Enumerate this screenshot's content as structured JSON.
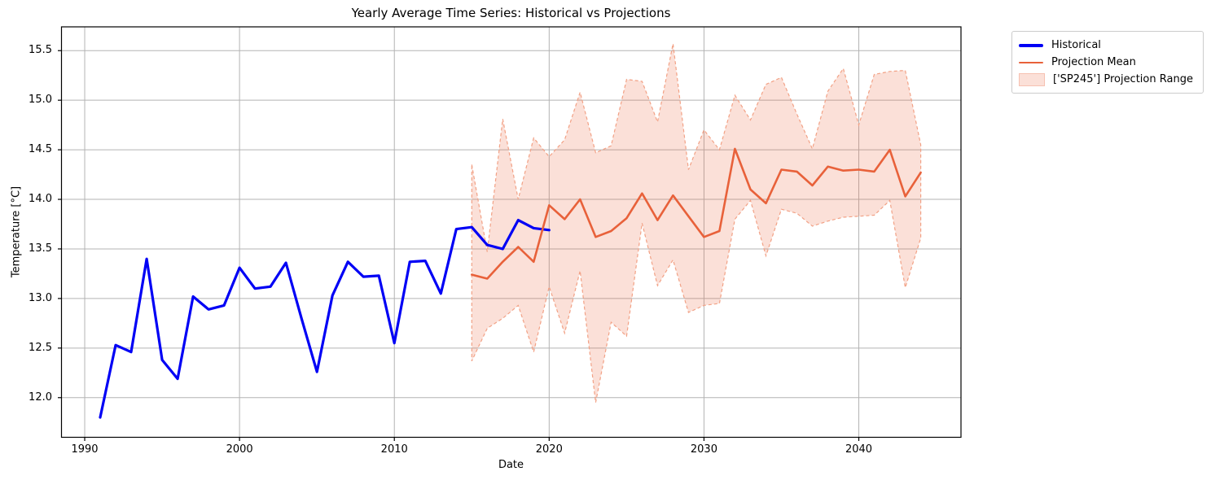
{
  "chart_data": {
    "type": "line",
    "title": "Yearly Average Time Series: Historical vs Projections",
    "xlabel": "Date",
    "ylabel": "Temperature [°C]",
    "grid": true,
    "legend_position": "outside-top-right",
    "xlim": [
      1988.5,
      2046.6
    ],
    "ylim": [
      11.6,
      15.74
    ],
    "x_tick_values": [
      1990,
      2000,
      2010,
      2020,
      2030,
      2040
    ],
    "x_tick_labels": [
      "1990",
      "2000",
      "2010",
      "2020",
      "2030",
      "2040"
    ],
    "y_tick_values": [
      12.0,
      12.5,
      13.0,
      13.5,
      14.0,
      14.5,
      15.0,
      15.5
    ],
    "y_tick_labels": [
      "12.0",
      "12.5",
      "13.0",
      "13.5",
      "14.0",
      "14.5",
      "15.0",
      "15.5"
    ],
    "series": [
      {
        "name": "Historical",
        "color": "#0000f5",
        "width": 3.2,
        "x": [
          1991,
          1992,
          1993,
          1994,
          1995,
          1996,
          1997,
          1998,
          1999,
          2000,
          2001,
          2002,
          2003,
          2004,
          2005,
          2006,
          2007,
          2008,
          2009,
          2010,
          2011,
          2012,
          2013,
          2014,
          2015,
          2016,
          2017,
          2018,
          2019,
          2020
        ],
        "values": [
          11.8,
          12.53,
          12.46,
          13.4,
          12.38,
          12.19,
          13.02,
          12.89,
          12.93,
          13.31,
          13.1,
          13.12,
          13.36,
          12.8,
          12.26,
          13.03,
          13.37,
          13.22,
          13.23,
          12.55,
          13.37,
          13.38,
          13.05,
          13.7,
          13.72,
          13.54,
          13.5,
          13.79,
          13.71,
          13.69
        ]
      },
      {
        "name": "Projection Mean",
        "color": "#e8613a",
        "width": 2.6,
        "x": [
          2015,
          2016,
          2017,
          2018,
          2019,
          2020,
          2021,
          2022,
          2023,
          2024,
          2025,
          2026,
          2027,
          2028,
          2029,
          2030,
          2031,
          2032,
          2033,
          2034,
          2035,
          2036,
          2037,
          2038,
          2039,
          2040,
          2041,
          2042,
          2043,
          2044
        ],
        "values": [
          13.24,
          13.2,
          13.37,
          13.52,
          13.37,
          13.94,
          13.8,
          14.0,
          13.62,
          13.68,
          13.81,
          14.06,
          13.79,
          14.04,
          13.83,
          13.62,
          13.68,
          14.51,
          14.1,
          13.96,
          14.3,
          14.28,
          14.14,
          14.33,
          14.29,
          14.3,
          14.28,
          14.5,
          14.03,
          14.27
        ]
      }
    ],
    "band": {
      "name": "['SP245'] Projection Range",
      "fill": "rgba(233,99,58,0.2)",
      "edge": "#f2a185",
      "edge_dash": "4,3",
      "x": [
        2015,
        2016,
        2017,
        2018,
        2019,
        2020,
        2021,
        2022,
        2023,
        2024,
        2025,
        2026,
        2027,
        2028,
        2029,
        2030,
        2031,
        2032,
        2033,
        2034,
        2035,
        2036,
        2037,
        2038,
        2039,
        2040,
        2041,
        2042,
        2043,
        2044
      ],
      "upper": [
        14.35,
        13.47,
        14.81,
        14.0,
        14.62,
        14.43,
        14.6,
        15.08,
        14.47,
        14.54,
        15.21,
        15.19,
        14.78,
        15.57,
        14.3,
        14.7,
        14.5,
        15.05,
        14.8,
        15.16,
        15.23,
        14.86,
        14.51,
        15.09,
        15.32,
        14.75,
        15.26,
        15.29,
        15.3,
        14.55
      ],
      "lower": [
        12.37,
        12.7,
        12.8,
        12.93,
        12.46,
        13.12,
        12.65,
        13.28,
        11.95,
        12.76,
        12.62,
        13.76,
        13.13,
        13.39,
        12.86,
        12.93,
        12.95,
        13.8,
        13.99,
        13.43,
        13.9,
        13.86,
        13.73,
        13.78,
        13.82,
        13.83,
        13.84,
        13.99,
        13.11,
        13.61
      ]
    },
    "axis_color": "#000000",
    "grid_color": "#b3b3b3"
  }
}
